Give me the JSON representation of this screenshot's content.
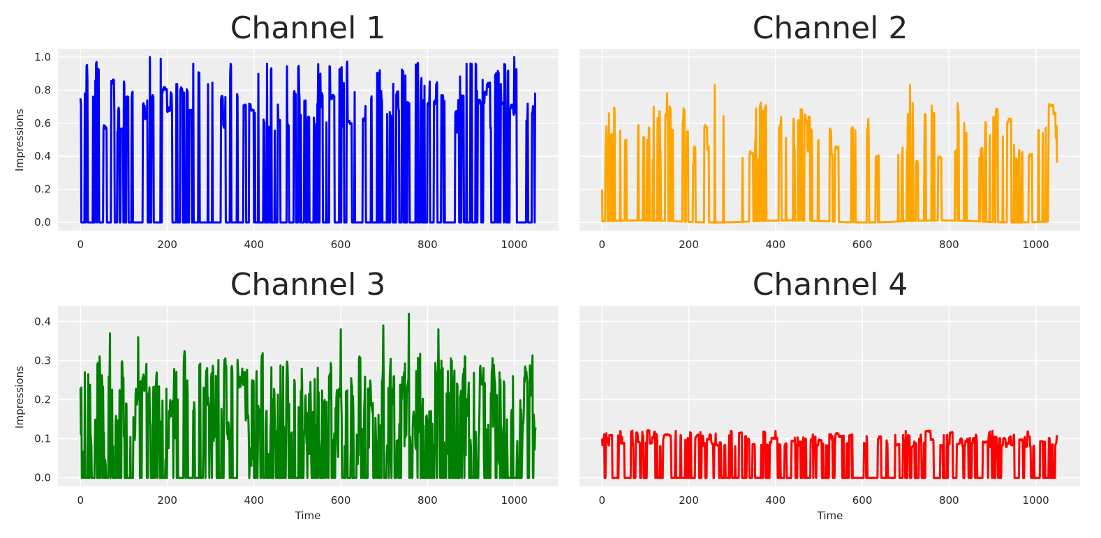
{
  "figure": {
    "background": "#ffffff",
    "axes_background": "#eeeeee",
    "grid_color": "#ffffff",
    "text_color": "#262626"
  },
  "chart_data": [
    {
      "type": "line",
      "title": "Channel 1",
      "xlabel": "",
      "ylabel": "Impressions",
      "color": "#0000ff",
      "xlim": [
        -52,
        1102
      ],
      "ylim": [
        -0.05,
        1.05
      ],
      "xticks": [
        0,
        200,
        400,
        600,
        800,
        1000
      ],
      "yticks": [
        0.0,
        0.2,
        0.4,
        0.6,
        0.8,
        1.0
      ],
      "ytick_labels": [
        "0.0",
        "0.2",
        "0.4",
        "0.6",
        "0.8",
        "1.0"
      ],
      "grid": true,
      "generator": {
        "n": 1050,
        "kind": "on_off",
        "seed": 11,
        "p_on": 0.42,
        "low": 0.0,
        "high_min": 0.55,
        "high_max": 0.97,
        "bump": 0.0
      },
      "peaks": [
        [
          0,
          0.75
        ],
        [
          10,
          0.78
        ],
        [
          160,
          1.0
        ],
        [
          185,
          0.99
        ],
        [
          260,
          0.96
        ],
        [
          430,
          0.96
        ],
        [
          690,
          0.92
        ],
        [
          890,
          0.96
        ],
        [
          1000,
          1.0
        ],
        [
          1048,
          0.78
        ]
      ]
    },
    {
      "type": "line",
      "title": "Channel 2",
      "xlabel": "",
      "ylabel": "",
      "color": "#ffa500",
      "xlim": [
        -52,
        1102
      ],
      "ylim": [
        -0.05,
        1.05
      ],
      "xticks": [
        0,
        200,
        400,
        600,
        800,
        1000
      ],
      "yticks": [
        0.0,
        0.2,
        0.4,
        0.6,
        0.8,
        1.0
      ],
      "ytick_labels": [
        "",
        "",
        "",
        "",
        "",
        ""
      ],
      "grid": true,
      "generator": {
        "n": 1050,
        "kind": "on_off",
        "seed": 23,
        "p_on": 0.3,
        "low": 0.0,
        "high_min": 0.35,
        "high_max": 0.72,
        "bump": 0.012
      },
      "peaks": [
        [
          0,
          0.2
        ],
        [
          10,
          0.58
        ],
        [
          150,
          0.78
        ],
        [
          260,
          0.83
        ],
        [
          375,
          0.69
        ],
        [
          710,
          0.83
        ],
        [
          820,
          0.72
        ],
        [
          1048,
          0.58
        ]
      ]
    },
    {
      "type": "line",
      "title": "Channel 3",
      "xlabel": "Time",
      "ylabel": "Impressions",
      "color": "#008000",
      "xlim": [
        -52,
        1102
      ],
      "ylim": [
        -0.022,
        0.44
      ],
      "xticks": [
        0,
        200,
        400,
        600,
        800,
        1000
      ],
      "yticks": [
        0.0,
        0.1,
        0.2,
        0.3,
        0.4
      ],
      "ytick_labels": [
        "0.0",
        "0.1",
        "0.2",
        "0.3",
        "0.4"
      ],
      "grid": true,
      "generator": {
        "n": 1050,
        "kind": "noisy",
        "seed": 37,
        "p_on": 0.55,
        "low": 0.0,
        "high_min": 0.05,
        "high_max": 0.3,
        "bump": 0.0
      },
      "peaks": [
        [
          0,
          0.23
        ],
        [
          10,
          0.27
        ],
        [
          68,
          0.37
        ],
        [
          133,
          0.36
        ],
        [
          600,
          0.38
        ],
        [
          698,
          0.39
        ],
        [
          757,
          0.42
        ],
        [
          825,
          0.38
        ],
        [
          1048,
          0.12
        ]
      ]
    },
    {
      "type": "line",
      "title": "Channel 4",
      "xlabel": "Time",
      "ylabel": "",
      "color": "#ff0000",
      "xlim": [
        -52,
        1102
      ],
      "ylim": [
        -0.022,
        0.44
      ],
      "xticks": [
        0,
        200,
        400,
        600,
        800,
        1000
      ],
      "yticks": [
        0.0,
        0.1,
        0.2,
        0.3,
        0.4
      ],
      "ytick_labels": [
        "",
        "",
        "",
        "",
        ""
      ],
      "grid": true,
      "generator": {
        "n": 1050,
        "kind": "on_off",
        "seed": 53,
        "p_on": 0.5,
        "low": 0.0,
        "high_min": 0.08,
        "high_max": 0.12,
        "bump": 0.0
      },
      "peaks": [
        [
          0,
          0.1
        ],
        [
          170,
          0.12
        ],
        [
          400,
          0.12
        ],
        [
          700,
          0.12
        ],
        [
          900,
          0.12
        ],
        [
          1048,
          0.1
        ]
      ]
    }
  ]
}
